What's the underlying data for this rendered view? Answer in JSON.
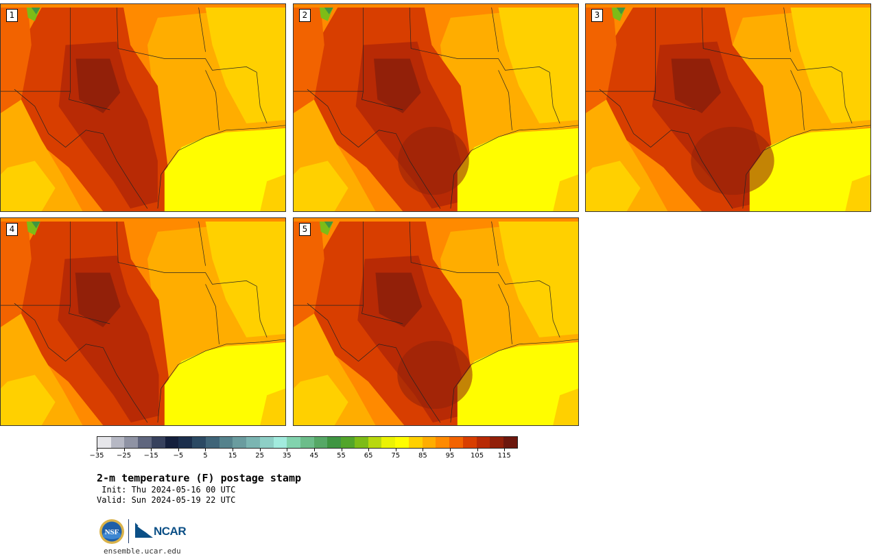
{
  "panels": [
    {
      "number": "1",
      "variant": 0
    },
    {
      "number": "2",
      "variant": 1
    },
    {
      "number": "3",
      "variant": 2
    },
    {
      "number": "4",
      "variant": 3
    },
    {
      "number": "5",
      "variant": 4
    }
  ],
  "colorbar": {
    "colors": [
      "#e6e6ea",
      "#b6b8c4",
      "#8f93a4",
      "#5f667e",
      "#37415d",
      "#141f3c",
      "#1b2e4c",
      "#2b4963",
      "#3f6478",
      "#55828c",
      "#6a9c9f",
      "#7bb5b2",
      "#8ecfc6",
      "#a2ebde",
      "#82d3ae",
      "#6cbd8a",
      "#56a866",
      "#3f9542",
      "#52a52a",
      "#7dbc17",
      "#b8d80e",
      "#ebf203",
      "#fffd00",
      "#ffd000",
      "#ffad00",
      "#ff8a00",
      "#f26300",
      "#d83e00",
      "#b82a05",
      "#922009",
      "#6c170d"
    ],
    "ticks": [
      "−35",
      "−25",
      "−15",
      "−5",
      "5",
      "15",
      "25",
      "35",
      "45",
      "55",
      "65",
      "75",
      "85",
      "95",
      "105",
      "115"
    ]
  },
  "title": "2-m temperature (F) postage stamp",
  "init_line": " Init: Thu 2024-05-16 00 UTC",
  "valid_line": "Valid: Sun 2024-05-19 22 UTC",
  "logos": {
    "nsf": "NSF",
    "ncar": "NCAR"
  },
  "url": "ensemble.ucar.edu"
}
